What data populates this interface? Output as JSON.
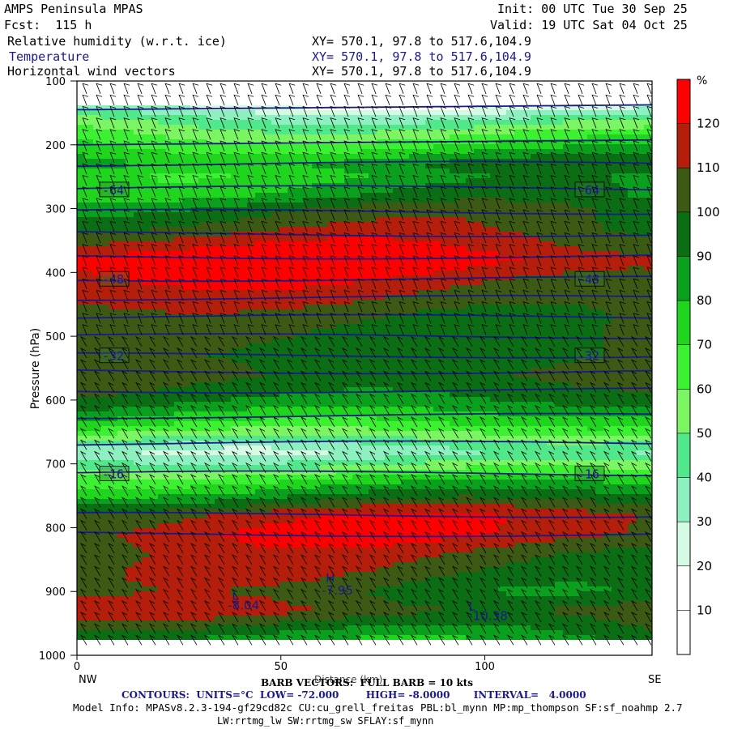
{
  "header": {
    "model": "AMPS Peninsula MPAS",
    "init": "Init: 00 UTC Tue 30 Sep 25",
    "fcst": "Fcst:  115 h",
    "valid": "Valid: 19 UTC Sat 04 Oct 25",
    "field1": "Relative humidity (w.r.t. ice)",
    "field2": "Temperature",
    "field3": "Horizontal wind vectors",
    "xy": "XY= 570.1, 97.8 to 517.6,104.9"
  },
  "footer": {
    "barb": "BARB VECTORS:  FULL BARB = 10 kts",
    "xaxis_title": "Distance (km)",
    "contours": "CONTOURS:  UNITS=°C  LOW= -72.000        HIGH= -8.0000       INTERVAL=   4.0000",
    "model_info": "Model Info: MPASv8.2.3-194-gf29cd82c CU:cu_grell_freitas PBL:bl_mynn MP:mp_thompson SF:sf_noahmp 2.7",
    "model_info2": "LW:rrtmg_lw SW:rrtmg_sw SFLAY:sf_mynn",
    "nw": "NW",
    "se": "SE"
  },
  "colors": {
    "contour": "#1a1a8c",
    "frame": "#000000"
  },
  "chart_data": {
    "type": "heatmap",
    "title": "Relative humidity (w.r.t. ice), Temperature, Horizontal wind vectors",
    "xlabel": "Distance (km)",
    "ylabel": "Pressure (hPa)",
    "xlim": [
      0,
      141
    ],
    "ylim": [
      1000,
      100
    ],
    "xticks": [
      "0",
      "50",
      "100"
    ],
    "xtick_values": [
      0,
      50,
      100
    ],
    "yticks": [
      "100",
      "200",
      "300",
      "400",
      "500",
      "600",
      "700",
      "800",
      "900",
      "1000"
    ],
    "ytick_values": [
      100,
      200,
      300,
      400,
      500,
      600,
      700,
      800,
      900,
      1000
    ],
    "colorbar": {
      "unit": "%",
      "levels": [
        "10",
        "20",
        "30",
        "40",
        "50",
        "60",
        "70",
        "80",
        "90",
        "100",
        "110",
        "120"
      ],
      "level_values": [
        10,
        20,
        30,
        40,
        50,
        60,
        70,
        80,
        90,
        100,
        110,
        120
      ],
      "colors": [
        "#ffffff",
        "#ffffff",
        "#d6fbe4",
        "#8ef0c0",
        "#50e88a",
        "#7cf562",
        "#3cf032",
        "#1fd51e",
        "#0aa01e",
        "#0b6e14",
        "#3c5a14",
        "#b41e0a",
        "#ff0000"
      ]
    },
    "rh_profile": {
      "pressure": [
        120,
        160,
        180,
        200,
        230,
        250,
        280,
        300,
        330,
        360,
        380,
        410,
        440,
        470,
        500,
        530,
        560,
        600,
        640,
        680,
        700,
        720,
        750,
        780,
        810,
        840,
        870,
        900,
        930,
        960,
        980
      ],
      "rh": [
        5,
        45,
        60,
        72,
        90,
        80,
        85,
        95,
        102,
        115,
        125,
        118,
        112,
        104,
        100,
        96,
        100,
        90,
        70,
        35,
        50,
        70,
        90,
        112,
        115,
        106,
        104,
        100,
        112,
        96,
        85
      ]
    },
    "temperature_contours": [
      {
        "value": -64,
        "label": "-64",
        "pressure": 270
      },
      {
        "value": -48,
        "label": "-48",
        "pressure": 410
      },
      {
        "value": -32,
        "label": "-32",
        "pressure": 530
      },
      {
        "value": -16,
        "label": "-16",
        "pressure": 715
      }
    ],
    "contour_pressures": [
      145,
      200,
      230,
      268,
      305,
      340,
      375,
      410,
      440,
      470,
      500,
      530,
      555,
      585,
      625,
      668,
      715,
      780,
      810
    ],
    "annotations": [
      {
        "text": "H",
        "x": 61,
        "p": 885
      },
      {
        "text": "-7.95",
        "x": 60,
        "p": 905
      },
      {
        "text": "L",
        "x": 38,
        "p": 913
      },
      {
        "text": "-8.04",
        "x": 37,
        "p": 928
      },
      {
        "text": "L",
        "x": 96,
        "p": 930
      },
      {
        "text": "-10.38",
        "x": 96,
        "p": 945
      }
    ]
  }
}
